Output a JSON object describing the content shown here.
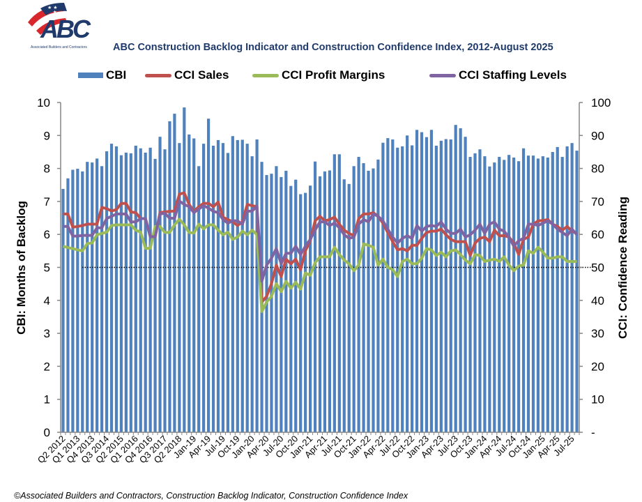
{
  "logo": {
    "letters": "ABC",
    "tagline": "Associated Builders and Contractors",
    "colors": {
      "navy": "#1f3a6b",
      "red": "#d9272e"
    }
  },
  "footer": "©Associated Builders and Contractors, Construction Backlog Indicator, Construction Confidence Index",
  "chart_data": {
    "type": "bar+line",
    "title": "ABC Construction Backlog Indicator and Construction Confidence Index, 2012-August 2025",
    "ylabel": "CBI: Months of Backlog",
    "y2label": "CCI: Confidence Reading",
    "ylim": [
      0,
      10
    ],
    "y2lim": [
      0,
      100
    ],
    "yticks": [
      "0",
      "1",
      "2",
      "3",
      "4",
      "5",
      "6",
      "7",
      "8",
      "9",
      "10"
    ],
    "y2ticks": [
      "-",
      "10",
      "20",
      "30",
      "40",
      "50",
      "60",
      "70",
      "80",
      "90",
      "100"
    ],
    "reference_line": {
      "axis": "y2",
      "value": 50,
      "style": "dotted"
    },
    "grid": false,
    "legend_placement": "top",
    "x_tick_every": 3,
    "x_tick_labels": [
      "Q2 2012",
      "Q1 2013",
      "Q4 2013",
      "Q3 2014",
      "Q2 2015",
      "Q1 2016",
      "Q4 2016",
      "Q3 2017",
      "Q2 2018",
      "Jan-19",
      "Apr-19",
      "Jul-19",
      "Oct-19",
      "Jan-20",
      "Apr-20",
      "Jul-20",
      "Oct-20",
      "Jan-21",
      "Apr-21",
      "Jul-21",
      "Oct-21",
      "Jan-22",
      "Apr-22",
      "Jul-22",
      "Oct-22",
      "Jan-23",
      "Apr-23",
      "Jul-23",
      "Oct-23",
      "Jan-24",
      "Apr-24",
      "Jul-24",
      "Oct-24",
      "Jan-25",
      "Apr-25",
      "Jul-25"
    ],
    "series": [
      {
        "name": "CBI",
        "type": "bar",
        "axis": "y",
        "color": "#4f81bd",
        "values": [
          7.38,
          7.7,
          7.96,
          7.99,
          7.91,
          8.2,
          8.18,
          8.3,
          8.07,
          8.52,
          8.75,
          8.67,
          8.4,
          8.48,
          8.46,
          8.69,
          8.61,
          8.48,
          8.63,
          8.29,
          8.96,
          8.58,
          9.43,
          9.66,
          8.77,
          9.85,
          9.03,
          8.91,
          8.07,
          8.75,
          9.51,
          8.69,
          8.86,
          8.77,
          8.47,
          8.98,
          8.86,
          8.87,
          8.75,
          8.37,
          8.88,
          8.2,
          7.8,
          7.84,
          8.07,
          7.74,
          7.93,
          7.47,
          7.66,
          7.22,
          7.26,
          7.48,
          8.21,
          7.76,
          7.91,
          7.94,
          8.43,
          8.43,
          7.67,
          7.53,
          8.07,
          8.35,
          8.16,
          7.93,
          8.0,
          8.27,
          8.78,
          8.92,
          8.88,
          8.63,
          8.67,
          9.0,
          8.7,
          9.17,
          9.1,
          8.95,
          9.17,
          8.69,
          8.84,
          8.89,
          8.88,
          9.32,
          9.22,
          8.96,
          8.35,
          8.46,
          8.58,
          8.37,
          8.06,
          8.18,
          8.35,
          8.26,
          8.41,
          8.33,
          8.22,
          8.61,
          8.39,
          8.39,
          8.3,
          8.37,
          8.33,
          8.5,
          8.65,
          8.35,
          8.67,
          8.77,
          8.54
        ]
      },
      {
        "name": "CCI Sales",
        "type": "line",
        "axis": "y2",
        "color": "#c0504d",
        "values": [
          66.2,
          66.2,
          62.2,
          62.4,
          62.7,
          63.1,
          63.1,
          63.1,
          68.2,
          67.8,
          67.1,
          67.5,
          69.4,
          69.4,
          66.8,
          66.6,
          64.8,
          64.8,
          59.3,
          59.3,
          66.6,
          66.8,
          67.0,
          67.1,
          72.2,
          72.6,
          69.1,
          67.0,
          68.4,
          69.4,
          69.4,
          68.4,
          69.8,
          65.2,
          64.5,
          63.8,
          62.7,
          63.8,
          69.1,
          68.7,
          68.4,
          39.5,
          41.2,
          45.1,
          50.7,
          47.2,
          52.5,
          51.1,
          52.5,
          49.3,
          55.0,
          58.1,
          64.1,
          65.5,
          64.1,
          64.5,
          65.2,
          63.1,
          61.3,
          60.3,
          59.6,
          64.8,
          66.2,
          66.2,
          66.6,
          65.5,
          63.4,
          60.6,
          57.8,
          55.3,
          55.7,
          55.0,
          56.7,
          56.7,
          58.8,
          60.6,
          61.0,
          61.0,
          61.6,
          59.9,
          58.5,
          57.8,
          57.8,
          57.8,
          53.6,
          57.4,
          58.8,
          59.2,
          57.8,
          61.3,
          59.6,
          59.6,
          59.2,
          57.4,
          53.9,
          58.5,
          59.2,
          63.1,
          64.1,
          64.2,
          64.5,
          63.1,
          62.4,
          61.3,
          62.4,
          61.0,
          60.3
        ]
      },
      {
        "name": "CCI Profit Margins",
        "type": "line",
        "axis": "y2",
        "color": "#9bbb59",
        "values": [
          56.4,
          56.0,
          55.7,
          55.3,
          55.0,
          57.2,
          57.4,
          59.9,
          60.3,
          60.7,
          62.7,
          62.9,
          62.9,
          62.9,
          62.9,
          61.3,
          60.7,
          55.8,
          55.8,
          62.4,
          62.4,
          60.6,
          60.6,
          62.9,
          64.6,
          62.9,
          60.6,
          60.4,
          63.1,
          61.7,
          62.9,
          62.9,
          61.3,
          59.9,
          60.7,
          58.5,
          59.2,
          61.0,
          59.9,
          61.3,
          59.9,
          36.6,
          39.5,
          41.2,
          45.1,
          42.6,
          45.8,
          43.7,
          45.5,
          43.4,
          48.3,
          47.6,
          51.4,
          53.2,
          53.2,
          53.2,
          56.1,
          53.9,
          52.2,
          51.1,
          49.0,
          50.7,
          57.1,
          56.7,
          56.1,
          50.7,
          52.5,
          50.0,
          49.3,
          47.2,
          51.8,
          52.5,
          51.1,
          51.1,
          52.8,
          55.7,
          55.3,
          53.6,
          54.6,
          53.2,
          55.0,
          55.3,
          53.9,
          52.2,
          51.1,
          53.9,
          53.6,
          51.8,
          52.2,
          52.5,
          51.8,
          53.2,
          50.7,
          49.0,
          50.4,
          50.7,
          55.0,
          54.3,
          56.1,
          54.6,
          52.8,
          52.8,
          53.2,
          53.2,
          51.8,
          51.8,
          51.8
        ]
      },
      {
        "name": "CCI Staffing Levels",
        "type": "line",
        "axis": "y2",
        "color": "#8064a2",
        "values": [
          62.4,
          62.4,
          59.5,
          59.5,
          59.7,
          59.7,
          59.7,
          62.0,
          62.0,
          64.8,
          65.5,
          66.2,
          66.2,
          66.2,
          63.8,
          63.8,
          64.8,
          64.8,
          59.3,
          59.3,
          66.2,
          66.4,
          64.9,
          64.9,
          70.1,
          69.1,
          68.4,
          66.6,
          67.7,
          68.7,
          68.0,
          67.0,
          66.6,
          64.5,
          63.4,
          64.1,
          64.1,
          63.1,
          67.0,
          67.1,
          68.5,
          45.8,
          50.7,
          52.8,
          55.7,
          51.1,
          54.3,
          54.3,
          56.4,
          53.9,
          56.4,
          58.5,
          61.3,
          63.8,
          63.8,
          62.7,
          63.4,
          62.0,
          59.9,
          58.8,
          59.2,
          63.1,
          64.5,
          63.8,
          66.2,
          65.5,
          64.1,
          61.6,
          59.2,
          57.4,
          58.8,
          59.6,
          58.8,
          62.7,
          61.0,
          62.4,
          62.7,
          62.4,
          63.8,
          61.6,
          60.3,
          60.3,
          61.6,
          59.2,
          59.9,
          61.3,
          63.1,
          60.3,
          63.1,
          63.8,
          61.6,
          61.0,
          59.2,
          56.4,
          58.1,
          58.8,
          63.1,
          63.1,
          62.7,
          63.4,
          64.1,
          63.1,
          61.6,
          60.6,
          59.6,
          61.6,
          59.9
        ]
      }
    ]
  }
}
